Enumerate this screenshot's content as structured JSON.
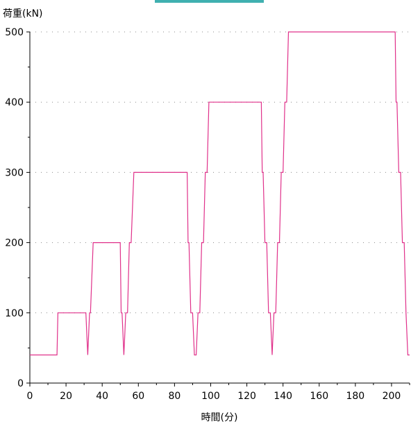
{
  "chart_data": {
    "type": "line",
    "title": "",
    "ylabel": "荷重(kN)",
    "xlabel": "時間(分)",
    "xlim": [
      0,
      210
    ],
    "ylim": [
      0,
      500
    ],
    "x_ticks": [
      0,
      20,
      40,
      60,
      80,
      100,
      120,
      140,
      160,
      180,
      200
    ],
    "y_ticks": [
      0,
      100,
      200,
      300,
      400,
      500
    ],
    "grid": "horizontal-dotted",
    "line_color": "#e0308a",
    "series": [
      {
        "x": [
          0,
          15,
          15.5,
          31,
          31.5,
          32,
          32.5,
          33,
          33.5,
          35,
          35.5,
          50,
          50.5,
          51,
          52,
          52.5,
          53,
          54,
          55,
          56,
          57.5,
          87,
          87.5,
          88,
          89,
          90,
          91,
          92,
          93,
          94,
          95,
          96,
          97,
          98,
          99,
          100,
          128,
          128.5,
          129,
          130,
          131,
          132,
          133,
          134,
          135,
          136,
          137,
          138,
          139,
          140,
          141,
          142,
          143,
          202,
          202.5,
          203,
          204,
          205,
          206,
          207,
          208,
          209,
          210
        ],
        "y": [
          40,
          40,
          100,
          100,
          70,
          40,
          70,
          100,
          100,
          200,
          200,
          200,
          100,
          100,
          40,
          70,
          100,
          100,
          200,
          200,
          300,
          300,
          200,
          200,
          100,
          100,
          40,
          40,
          100,
          100,
          200,
          200,
          300,
          300,
          400,
          400,
          400,
          300,
          300,
          200,
          200,
          100,
          100,
          40,
          100,
          100,
          200,
          200,
          300,
          300,
          400,
          400,
          500,
          500,
          400,
          400,
          300,
          300,
          200,
          200,
          100,
          40,
          40
        ]
      }
    ]
  }
}
